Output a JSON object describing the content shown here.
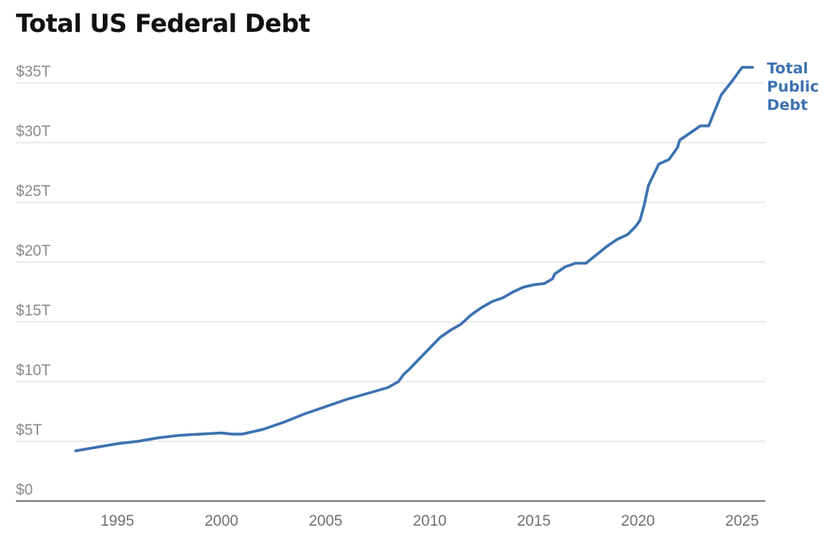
{
  "chart_data": {
    "type": "line",
    "title": "Total US Federal Debt",
    "xlabel": "",
    "ylabel": "",
    "xlim": [
      1993,
      2025.5
    ],
    "ylim": [
      0,
      35
    ],
    "grid": true,
    "y_ticks": [
      {
        "value": 0,
        "label": "$0"
      },
      {
        "value": 5,
        "label": "$5T"
      },
      {
        "value": 10,
        "label": "$10T"
      },
      {
        "value": 15,
        "label": "$15T"
      },
      {
        "value": 20,
        "label": "$20T"
      },
      {
        "value": 25,
        "label": "$25T"
      },
      {
        "value": 30,
        "label": "$30T"
      },
      {
        "value": 35,
        "label": "$35T"
      }
    ],
    "x_ticks": [
      {
        "value": 1995,
        "label": "1995"
      },
      {
        "value": 2000,
        "label": "2000"
      },
      {
        "value": 2005,
        "label": "2005"
      },
      {
        "value": 2010,
        "label": "2010"
      },
      {
        "value": 2015,
        "label": "2015"
      },
      {
        "value": 2020,
        "label": "2020"
      },
      {
        "value": 2025,
        "label": "2025"
      }
    ],
    "series": [
      {
        "name": "Total Public Debt",
        "color": "#3d72b0",
        "x": [
          1993.0,
          1994.0,
          1995.0,
          1996.0,
          1997.0,
          1998.0,
          1999.0,
          2000.0,
          2000.5,
          2001.0,
          2001.5,
          2002.0,
          2003.0,
          2004.0,
          2005.0,
          2006.0,
          2007.0,
          2008.0,
          2008.5,
          2008.75,
          2009.0,
          2009.5,
          2010.0,
          2010.5,
          2011.0,
          2011.5,
          2012.0,
          2012.5,
          2013.0,
          2013.5,
          2014.0,
          2014.5,
          2015.0,
          2015.5,
          2015.9,
          2016.0,
          2016.5,
          2017.0,
          2017.5,
          2018.0,
          2018.5,
          2019.0,
          2019.5,
          2019.9,
          2020.1,
          2020.3,
          2020.5,
          2021.0,
          2021.5,
          2021.9,
          2022.0,
          2022.5,
          2023.0,
          2023.4,
          2023.6,
          2024.0,
          2024.5,
          2025.0,
          2025.5
        ],
        "values": [
          4.2,
          4.5,
          4.8,
          5.0,
          5.3,
          5.5,
          5.6,
          5.7,
          5.6,
          5.6,
          5.8,
          6.0,
          6.6,
          7.3,
          7.9,
          8.5,
          9.0,
          9.5,
          10.0,
          10.6,
          11.0,
          11.9,
          12.8,
          13.7,
          14.3,
          14.8,
          15.6,
          16.2,
          16.7,
          17.0,
          17.5,
          17.9,
          18.1,
          18.2,
          18.6,
          19.0,
          19.6,
          19.9,
          19.9,
          20.6,
          21.3,
          21.9,
          22.3,
          23.0,
          23.5,
          24.8,
          26.4,
          28.2,
          28.6,
          29.6,
          30.2,
          30.8,
          31.4,
          31.4,
          32.3,
          34.0,
          35.1,
          36.3,
          36.3
        ]
      }
    ],
    "annotation": [
      "Total",
      "Public",
      "Debt"
    ]
  }
}
